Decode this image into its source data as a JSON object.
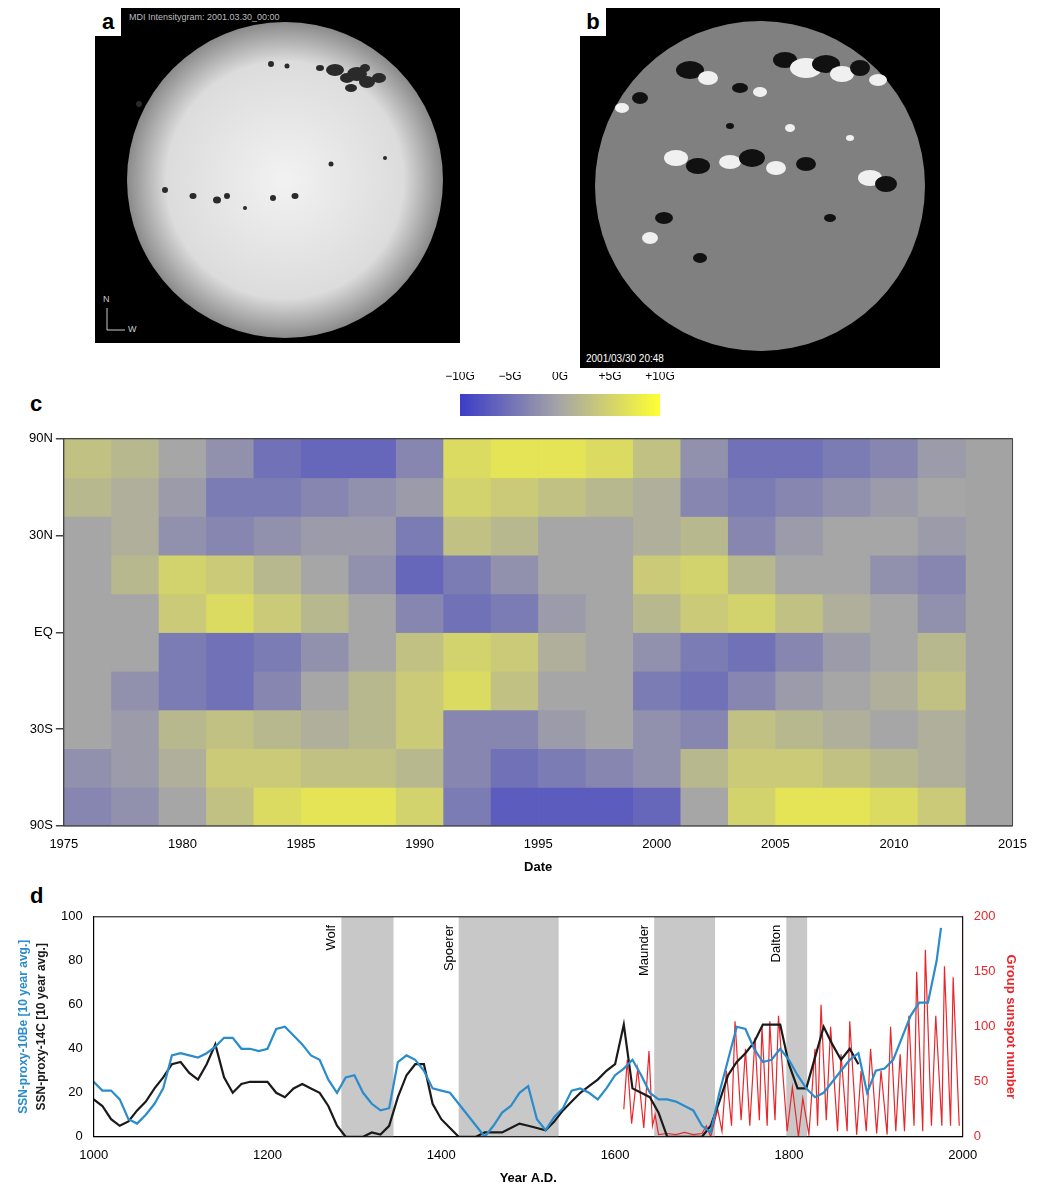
{
  "images": [
    {
      "letter": "a",
      "stamp": "MDI Intensitygram: 2001.03.30_00:00",
      "compass": [
        "N",
        "W"
      ]
    },
    {
      "letter": "b",
      "stamp": "2001/03/30 20:48"
    }
  ],
  "chart_data": [
    {
      "letter": "c",
      "type": "heatmap",
      "x_label": "Date",
      "xlim": [
        1975,
        2015
      ],
      "xticks": [
        1975,
        1980,
        1985,
        1990,
        1995,
        2000,
        2005,
        2010,
        2015
      ],
      "ylim": [
        -1,
        1
      ],
      "yticks": [
        {
          "value": -1,
          "label": "90S"
        },
        {
          "value": -0.5,
          "label": "30S"
        },
        {
          "value": 0,
          "label": "EQ"
        },
        {
          "value": 0.5,
          "label": "30N"
        },
        {
          "value": 1,
          "label": "90N"
        }
      ],
      "grid": "y",
      "x_bins": [
        1975,
        1977,
        1979,
        1981,
        1983,
        1985,
        1987,
        1989,
        1991,
        1993,
        1995,
        1997,
        1999,
        2001,
        2003,
        2005,
        2007,
        2009,
        2011,
        2013
      ],
      "y_bins": [
        -1,
        -0.8,
        -0.6,
        -0.4,
        -0.2,
        0,
        0.2,
        0.4,
        0.6,
        0.8,
        1
      ],
      "cells": [
        [
          -3,
          -2,
          0,
          3,
          6,
          7,
          7,
          5,
          -4,
          -7,
          -7,
          -7,
          -6,
          0,
          5,
          7,
          7,
          6,
          4
        ],
        [
          -2,
          -1,
          1,
          4,
          4,
          3,
          3,
          2,
          -3,
          -5,
          -4,
          -3,
          -2,
          2,
          4,
          4,
          3,
          2,
          1
        ],
        [
          0,
          -1,
          2,
          3,
          2,
          1,
          2,
          4,
          -3,
          -3,
          -1,
          0,
          -2,
          -3,
          3,
          2,
          1,
          0,
          1
        ],
        [
          0,
          -2,
          -4,
          -5,
          -3,
          0,
          2,
          4,
          6,
          3,
          0,
          0,
          -4,
          -5,
          -3,
          -1,
          0,
          1,
          3
        ],
        [
          0,
          0,
          -4,
          -5,
          -4,
          -2,
          0,
          3,
          5,
          4,
          1,
          0,
          -2,
          -4,
          -5,
          -3,
          -1,
          0,
          2
        ],
        [
          0,
          0,
          4,
          6,
          4,
          2,
          0,
          -3,
          -5,
          -4,
          -1,
          0,
          2,
          4,
          5,
          3,
          1,
          0,
          -2
        ],
        [
          0,
          2,
          5,
          4,
          2,
          0,
          -2,
          -6,
          -4,
          -2,
          0,
          0,
          4,
          5,
          2,
          0,
          0,
          -2,
          -3
        ],
        [
          0,
          1,
          -2,
          -3,
          -2,
          -1,
          -1,
          -4,
          3,
          2,
          0,
          0,
          1,
          2,
          -3,
          -1,
          0,
          0,
          -1
        ],
        [
          2,
          1,
          -1,
          -4,
          -4,
          -3,
          -2,
          -1,
          5,
          4,
          3,
          2,
          1,
          -3,
          -4,
          -3,
          -2,
          -1,
          0
        ],
        [
          3,
          2,
          0,
          -2,
          -5,
          -6,
          -6,
          -3,
          6,
          7,
          7,
          6,
          3,
          -2,
          -5,
          -5,
          -4,
          -3,
          -1
        ]
      ],
      "colorbar": {
        "range": [
          -10,
          10
        ],
        "ticks": [
          {
            "value": -10,
            "label": "−10G"
          },
          {
            "value": -5,
            "label": "−5G"
          },
          {
            "value": 0,
            "label": "0G"
          },
          {
            "value": 5,
            "label": "+5G"
          },
          {
            "value": 10,
            "label": "+10G"
          }
        ],
        "colors": [
          "#3c3cc8",
          "#a6a6a6",
          "#ffff33"
        ]
      }
    },
    {
      "letter": "d",
      "type": "line",
      "x_label": "Year A.D.",
      "xlim": [
        1000,
        2000
      ],
      "xticks": [
        1000,
        1200,
        1400,
        1600,
        1800,
        2000
      ],
      "ylim": [
        0,
        100
      ],
      "yticks": [
        0,
        20,
        40,
        60,
        80,
        100
      ],
      "y2lim": [
        0,
        200
      ],
      "y2ticks": [
        0,
        50,
        100,
        150,
        200
      ],
      "grid": false,
      "periods": [
        {
          "name": "Wolf",
          "start": 1285,
          "end": 1345
        },
        {
          "name": "Spoerer",
          "start": 1420,
          "end": 1535
        },
        {
          "name": "Maunder",
          "start": 1645,
          "end": 1715
        },
        {
          "name": "Dalton",
          "start": 1797,
          "end": 1821
        }
      ],
      "series": [
        {
          "name": "SSN-proxy-10Be [10 year avg.]",
          "color": "#2a8ccb",
          "x": [
            1000,
            1010,
            1020,
            1030,
            1040,
            1050,
            1060,
            1070,
            1080,
            1090,
            1100,
            1110,
            1120,
            1130,
            1140,
            1150,
            1160,
            1170,
            1180,
            1190,
            1200,
            1210,
            1220,
            1230,
            1240,
            1250,
            1260,
            1270,
            1280,
            1290,
            1300,
            1310,
            1320,
            1330,
            1340,
            1350,
            1360,
            1370,
            1380,
            1390,
            1400,
            1410,
            1420,
            1430,
            1440,
            1450,
            1460,
            1470,
            1480,
            1490,
            1500,
            1510,
            1520,
            1530,
            1540,
            1550,
            1560,
            1570,
            1580,
            1590,
            1600,
            1610,
            1620,
            1630,
            1640,
            1650,
            1660,
            1670,
            1680,
            1690,
            1700,
            1710,
            1720,
            1730,
            1740,
            1750,
            1760,
            1770,
            1780,
            1790,
            1800,
            1810,
            1820,
            1830,
            1840,
            1850,
            1860,
            1870,
            1880,
            1890,
            1900,
            1910,
            1920,
            1930,
            1940,
            1950,
            1960,
            1970,
            1975
          ],
          "values": [
            25,
            21,
            21,
            17,
            8,
            6,
            10,
            15,
            22,
            37,
            38,
            37,
            36,
            38,
            41,
            45,
            45,
            40,
            40,
            39,
            40,
            49,
            50,
            46,
            42,
            37,
            35,
            26,
            20,
            27,
            28,
            20,
            15,
            12,
            13,
            34,
            37,
            35,
            30,
            22,
            21,
            20,
            15,
            10,
            5,
            0,
            5,
            11,
            14,
            20,
            23,
            8,
            3,
            9,
            13,
            21,
            22,
            20,
            17,
            22,
            28,
            31,
            35,
            28,
            20,
            17,
            17,
            16,
            14,
            12,
            5,
            2,
            20,
            35,
            50,
            49,
            40,
            34,
            35,
            40,
            35,
            28,
            22,
            18,
            20,
            25,
            30,
            35,
            38,
            20,
            30,
            31,
            35,
            45,
            55,
            61,
            61,
            80,
            95
          ]
        },
        {
          "name": "SSN-proxy-14C [10 year avg.]",
          "color": "#1a1a1a",
          "x": [
            1000,
            1010,
            1020,
            1030,
            1040,
            1050,
            1060,
            1070,
            1080,
            1090,
            1100,
            1110,
            1120,
            1130,
            1140,
            1150,
            1160,
            1170,
            1180,
            1190,
            1200,
            1210,
            1220,
            1230,
            1240,
            1250,
            1260,
            1270,
            1280,
            1290,
            1300,
            1310,
            1320,
            1330,
            1340,
            1350,
            1360,
            1370,
            1380,
            1390,
            1400,
            1410,
            1420,
            1430,
            1440,
            1450,
            1460,
            1470,
            1480,
            1490,
            1500,
            1510,
            1520,
            1530,
            1540,
            1550,
            1560,
            1570,
            1580,
            1590,
            1600,
            1610,
            1620,
            1630,
            1640,
            1650,
            1660,
            1670,
            1680,
            1690,
            1700,
            1710,
            1720,
            1730,
            1740,
            1750,
            1760,
            1770,
            1780,
            1790,
            1800,
            1810,
            1820,
            1830,
            1840,
            1850,
            1860,
            1870,
            1880
          ],
          "values": [
            17,
            14,
            8,
            5,
            7,
            12,
            16,
            22,
            27,
            33,
            34,
            29,
            26,
            33,
            42,
            27,
            20,
            24,
            25,
            25,
            25,
            20,
            18,
            22,
            24,
            22,
            20,
            14,
            5,
            0,
            0,
            0,
            2,
            1,
            5,
            18,
            28,
            33,
            33,
            15,
            8,
            4,
            0,
            0,
            0,
            2,
            2,
            2,
            4,
            6,
            5,
            4,
            3,
            7,
            12,
            16,
            20,
            23,
            26,
            30,
            33,
            51,
            22,
            20,
            18,
            11,
            0,
            0,
            0,
            0,
            0,
            5,
            16,
            28,
            34,
            38,
            43,
            51,
            51,
            51,
            33,
            22,
            22,
            36,
            50,
            42,
            35,
            40,
            33
          ]
        },
        {
          "name": "Group sunspot number",
          "color": "#e8262b",
          "axis": "y2",
          "x": [
            1610,
            1614,
            1619,
            1626,
            1633,
            1639,
            1643,
            1646,
            1650,
            1660,
            1670,
            1680,
            1690,
            1700,
            1705,
            1710,
            1718,
            1723,
            1728,
            1734,
            1738,
            1745,
            1750,
            1755,
            1761,
            1766,
            1769,
            1775,
            1778,
            1784,
            1788,
            1798,
            1804,
            1811,
            1816,
            1823,
            1830,
            1833,
            1837,
            1843,
            1848,
            1856,
            1860,
            1867,
            1870,
            1878,
            1883,
            1889,
            1894,
            1901,
            1906,
            1913,
            1917,
            1923,
            1928,
            1933,
            1938,
            1944,
            1947,
            1954,
            1957,
            1964,
            1969,
            1976,
            1979,
            1986,
            1989,
            1996
          ],
          "values": [
            25,
            70,
            12,
            62,
            8,
            78,
            10,
            20,
            2,
            3,
            2,
            4,
            2,
            3,
            10,
            0,
            25,
            5,
            60,
            10,
            105,
            15,
            80,
            10,
            90,
            15,
            100,
            10,
            105,
            15,
            110,
            5,
            45,
            0,
            35,
            2,
            80,
            10,
            120,
            15,
            100,
            5,
            75,
            5,
            105,
            2,
            60,
            5,
            80,
            3,
            60,
            2,
            100,
            5,
            75,
            5,
            110,
            10,
            150,
            5,
            170,
            10,
            110,
            10,
            155,
            10,
            145,
            10
          ]
        }
      ]
    }
  ]
}
